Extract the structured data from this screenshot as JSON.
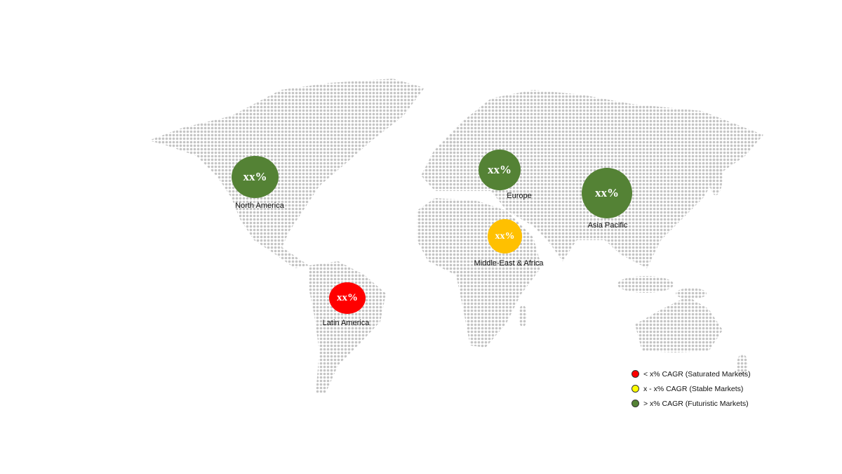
{
  "regions": [
    {
      "name": "North America",
      "value": "xx%",
      "color": "#548235",
      "category": "futuristic"
    },
    {
      "name": "Europe",
      "value": "xx%",
      "color": "#548235",
      "category": "futuristic"
    },
    {
      "name": "Asia Pacific",
      "value": "xx%",
      "color": "#548235",
      "category": "futuristic"
    },
    {
      "name": "Middle-East & Africa",
      "value": "xx%",
      "color": "#FFC000",
      "category": "stable"
    },
    {
      "name": "Latin America",
      "value": "xx%",
      "color": "#FF0000",
      "category": "saturated"
    }
  ],
  "legend": [
    {
      "label": "< x% CAGR (Saturated Markets)",
      "color": "#FF0000"
    },
    {
      "label": "x - x% CAGR (Stable Markets)",
      "color": "#FFFF00"
    },
    {
      "label": "> x% CAGR (Futuristic Markets)",
      "color": "#548235"
    }
  ],
  "map_dot_color": "#c4c4c4"
}
